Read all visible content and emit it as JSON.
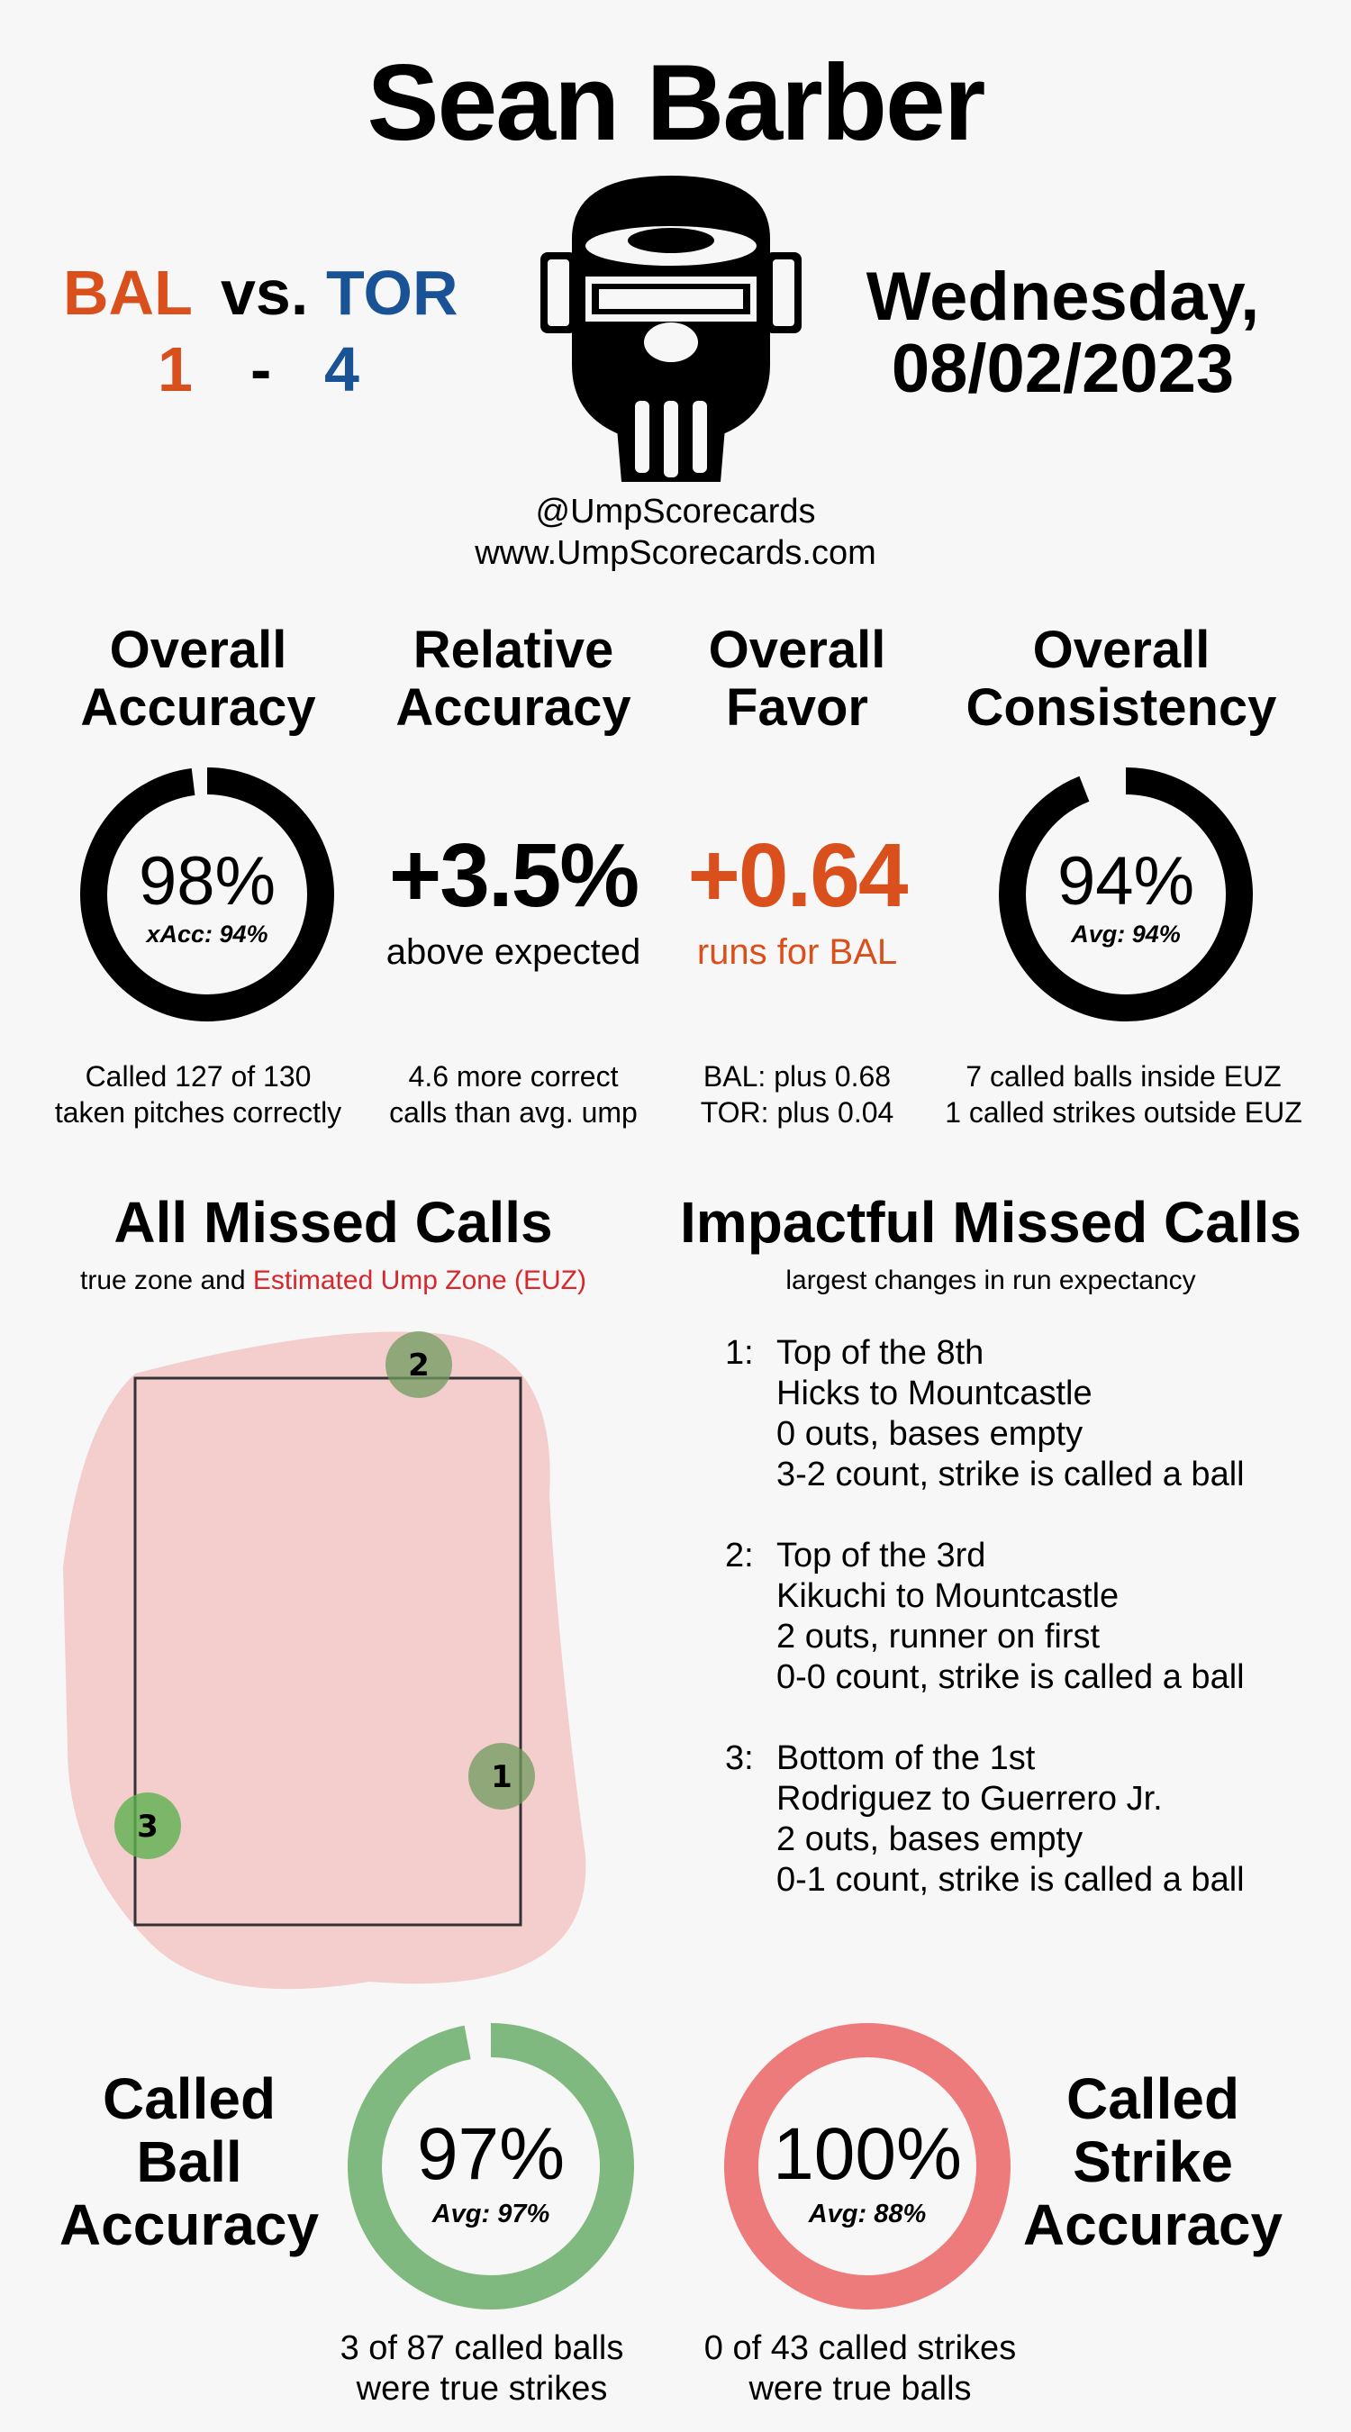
{
  "header": {
    "umpire_name": "Sean Barber",
    "away_team": "BAL",
    "vs_label": "vs.",
    "home_team": "TOR",
    "away_score": "1",
    "score_sep": "-",
    "home_score": "4",
    "date_line1": "Wednesday,",
    "date_line2": "08/02/2023",
    "handle": "@UmpScorecards",
    "website": "www.UmpScorecards.com",
    "mask_icon": "umpire-mask-icon"
  },
  "metrics": {
    "overall_accuracy": {
      "title_line1": "Overall",
      "title_line2": "Accuracy",
      "value": "98%",
      "sub": "xAcc: 94%",
      "fraction": 0.98,
      "detail_line1": "Called 127 of 130",
      "detail_line2": "taken pitches correctly"
    },
    "relative_accuracy": {
      "title_line1": "Relative",
      "title_line2": "Accuracy",
      "value": "+3.5%",
      "sub": "above expected",
      "detail_line1": "4.6 more correct",
      "detail_line2": "calls than avg. ump"
    },
    "overall_favor": {
      "title_line1": "Overall",
      "title_line2": "Favor",
      "value": "+0.64",
      "sub": "runs for BAL",
      "detail_line1": "BAL: plus 0.68",
      "detail_line2": "TOR: plus 0.04"
    },
    "overall_consistency": {
      "title_line1": "Overall",
      "title_line2": "Consistency",
      "value": "94%",
      "sub": "Avg: 94%",
      "fraction": 0.94,
      "detail_line1": "7 called balls inside EUZ",
      "detail_line2": "1 called strikes outside EUZ"
    }
  },
  "all_missed": {
    "title": "All Missed Calls",
    "sub_prefix": "true zone and",
    "sub_euz": "Estimated Ump Zone (EUZ)",
    "markers": [
      "1",
      "2",
      "3"
    ]
  },
  "impactful": {
    "title": "Impactful Missed Calls",
    "sub": "largest changes in run expectancy",
    "items": [
      {
        "num": "1:",
        "l1": "Top of the 8th",
        "l2": "Hicks to Mountcastle",
        "l3": "0 outs, bases empty",
        "l4": "3-2 count, strike is called a ball"
      },
      {
        "num": "2:",
        "l1": "Top of the 3rd",
        "l2": "Kikuchi to Mountcastle",
        "l3": "2 outs, runner on first",
        "l4": "0-0 count, strike is called a ball"
      },
      {
        "num": "3:",
        "l1": "Bottom of the 1st",
        "l2": "Rodriguez to Guerrero Jr.",
        "l3": "2 outs, bases empty",
        "l4": "0-1 count, strike is called a ball"
      }
    ]
  },
  "called_ball": {
    "title_l1": "Called",
    "title_l2": "Ball",
    "title_l3": "Accuracy",
    "value": "97%",
    "sub": "Avg: 97%",
    "fraction": 0.97,
    "note_l1": "3 of 87 called balls",
    "note_l2": "were true strikes"
  },
  "called_strike": {
    "title_l1": "Called",
    "title_l2": "Strike",
    "title_l3": "Accuracy",
    "value": "100%",
    "sub": "Avg: 88%",
    "fraction": 1.0,
    "note_l1": "0 of 43 called strikes",
    "note_l2": "were true balls"
  },
  "colors": {
    "orange": "#d9501d",
    "blue": "#1a5296",
    "euz_red": "#d7262c",
    "ball_green": "#80b97f",
    "strike_red": "#ee7b7b",
    "ring_black": "#000000"
  }
}
